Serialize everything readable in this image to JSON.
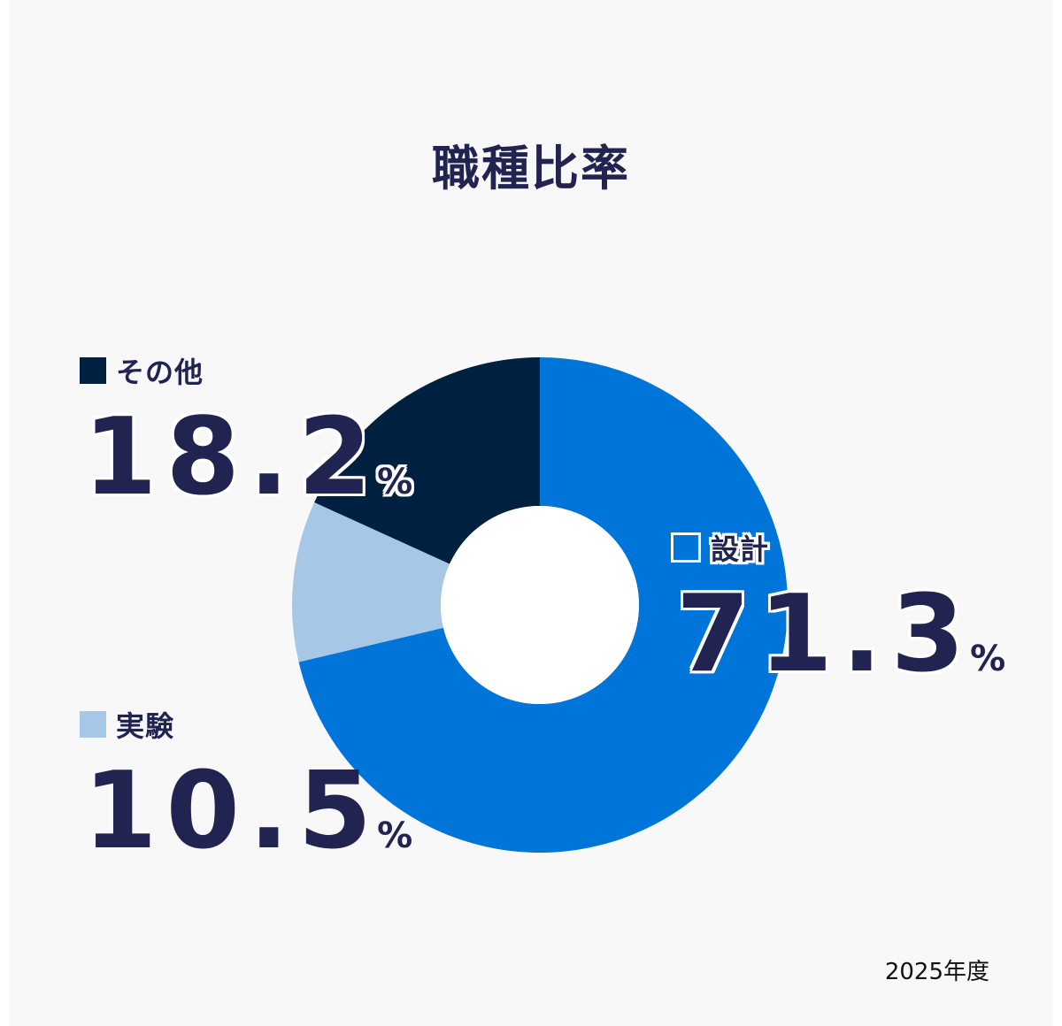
{
  "title": "職種比率",
  "footer": "2025年度",
  "colors": {
    "text": "#212350",
    "background": "#f8f8f8",
    "design": "#0075d9",
    "experiment": "#a7c7e7",
    "other": "#00203f"
  },
  "legend": {
    "other": {
      "label": "その他",
      "value": "18.2",
      "unit": "%",
      "color": "#00203f"
    },
    "experiment": {
      "label": "実験",
      "value": "10.5",
      "unit": "%",
      "color": "#a7c7e7"
    },
    "design": {
      "label": "設計",
      "value": "71.3",
      "unit": "%",
      "color": "#0075d9"
    }
  },
  "chart_data": {
    "type": "pie",
    "subtype": "donut",
    "title": "職種比率",
    "categories": [
      "設計",
      "実験",
      "その他"
    ],
    "values": [
      71.3,
      10.5,
      18.2
    ],
    "unit": "%",
    "colors": [
      "#0075d9",
      "#a7c7e7",
      "#00203f"
    ],
    "start_angle": "top (12 o'clock)",
    "direction": "clockwise",
    "annotations": [
      "2025年度"
    ],
    "legend_position": "labels beside slices"
  }
}
